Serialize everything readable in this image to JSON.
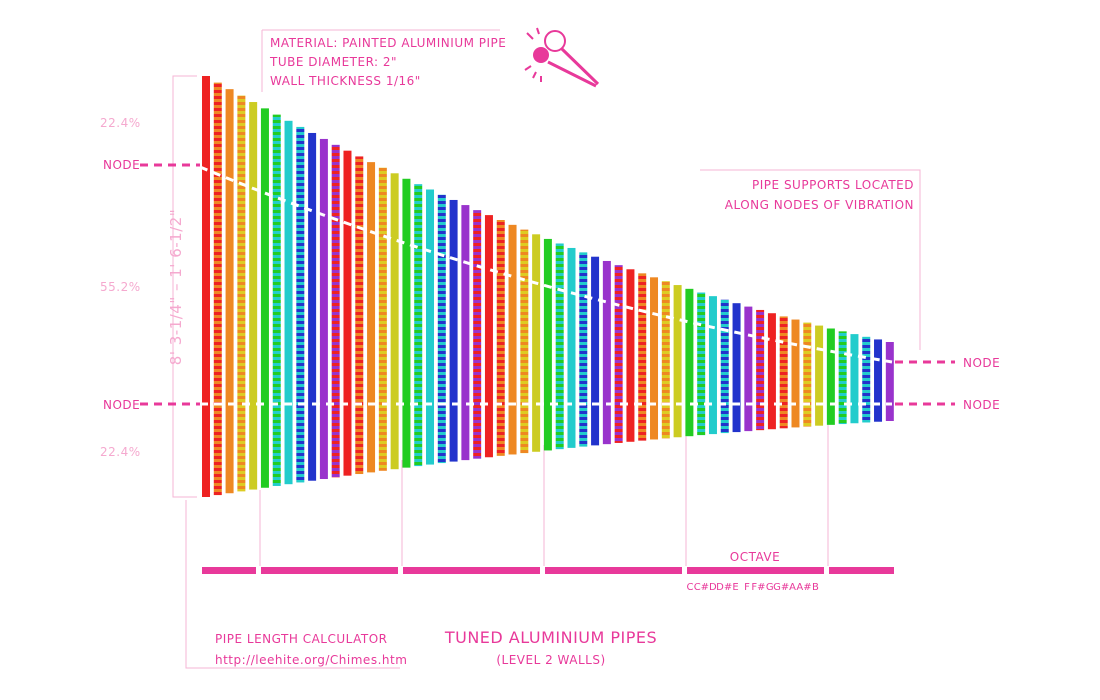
{
  "material": [
    "MATERIAL: PAINTED ALUMINIUM PIPE",
    "TUBE DIAMETER: 2\"",
    "WALL THICKNESS 1/16\""
  ],
  "supports": [
    "PIPE SUPPORTS LOCATED",
    "ALONG NODES OF VIBRATION"
  ],
  "percentages": [
    "22.4%",
    "55.2%",
    "22.4%"
  ],
  "node_labels": [
    "NODE",
    "NODE",
    "NODE",
    "NODE"
  ],
  "length_range": "8' 3-1/4\" – 1' 6-1/2\"",
  "octave": {
    "label": "OCTAVE",
    "notes": [
      "C",
      "C#",
      "D",
      "D#",
      "E",
      "F",
      "F#",
      "G",
      "G#",
      "A",
      "A#",
      "B"
    ]
  },
  "calculator": {
    "title": "PIPE LENGTH CALCULATOR",
    "url": "http://leehite.org/Chimes.htm"
  },
  "title": "TUNED ALUMINIUM PIPES",
  "subtitle": "(LEVEL 2 WALLS)"
}
